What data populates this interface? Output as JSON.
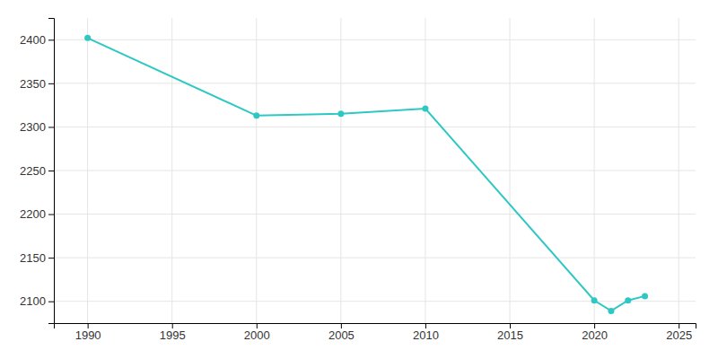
{
  "chart_data": {
    "type": "line",
    "x": [
      1990,
      2000,
      2005,
      2010,
      2020,
      2021,
      2022,
      2023
    ],
    "values": [
      2402,
      2313,
      2315,
      2321,
      2101,
      2089,
      2101,
      2106
    ],
    "color": "#2ec8c4",
    "marker": "circle",
    "xlim": [
      1988,
      2026
    ],
    "ylim": [
      2075,
      2425
    ],
    "xticks": [
      1990,
      1995,
      2000,
      2005,
      2010,
      2015,
      2020,
      2025
    ],
    "yticks": [
      2100,
      2150,
      2200,
      2250,
      2300,
      2350,
      2400
    ],
    "grid": true
  }
}
